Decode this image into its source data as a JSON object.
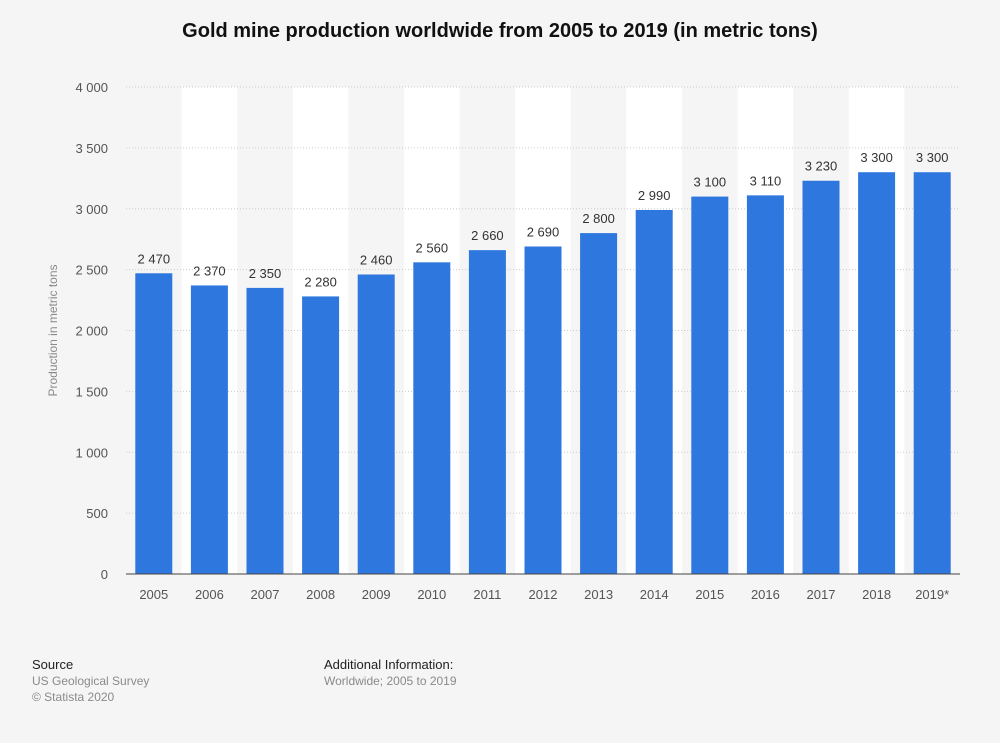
{
  "chart_data": {
    "type": "bar",
    "title": "Gold mine production worldwide from 2005 to 2019 (in metric tons)",
    "ylabel": "Production in metric tons",
    "xlabel": "",
    "categories": [
      "2005",
      "2006",
      "2007",
      "2008",
      "2009",
      "2010",
      "2011",
      "2012",
      "2013",
      "2014",
      "2015",
      "2016",
      "2017",
      "2018",
      "2019*"
    ],
    "values": [
      2470,
      2370,
      2350,
      2280,
      2460,
      2560,
      2660,
      2690,
      2800,
      2990,
      3100,
      3110,
      3230,
      3300,
      3300
    ],
    "value_labels": [
      "2 470",
      "2 370",
      "2 350",
      "2 280",
      "2 460",
      "2 560",
      "2 660",
      "2 690",
      "2 800",
      "2 990",
      "3 100",
      "3 110",
      "3 230",
      "3 300",
      "3 300"
    ],
    "ylim": [
      0,
      4000
    ],
    "yticks": [
      0,
      500,
      1000,
      1500,
      2000,
      2500,
      3000,
      3500,
      4000
    ],
    "ytick_labels": [
      "0",
      "500",
      "1 000",
      "1 500",
      "2 000",
      "2 500",
      "3 000",
      "3 500",
      "4 000"
    ],
    "grid": true,
    "colors": {
      "bar": "#2e77de",
      "band": "#ffffff",
      "grid": "#cccccc",
      "axis_text": "#555555"
    }
  },
  "footer": {
    "source_heading": "Source",
    "source_line1": "US Geological Survey",
    "source_line2": "© Statista 2020",
    "info_heading": "Additional Information:",
    "info_line1": "Worldwide; 2005 to 2019"
  }
}
